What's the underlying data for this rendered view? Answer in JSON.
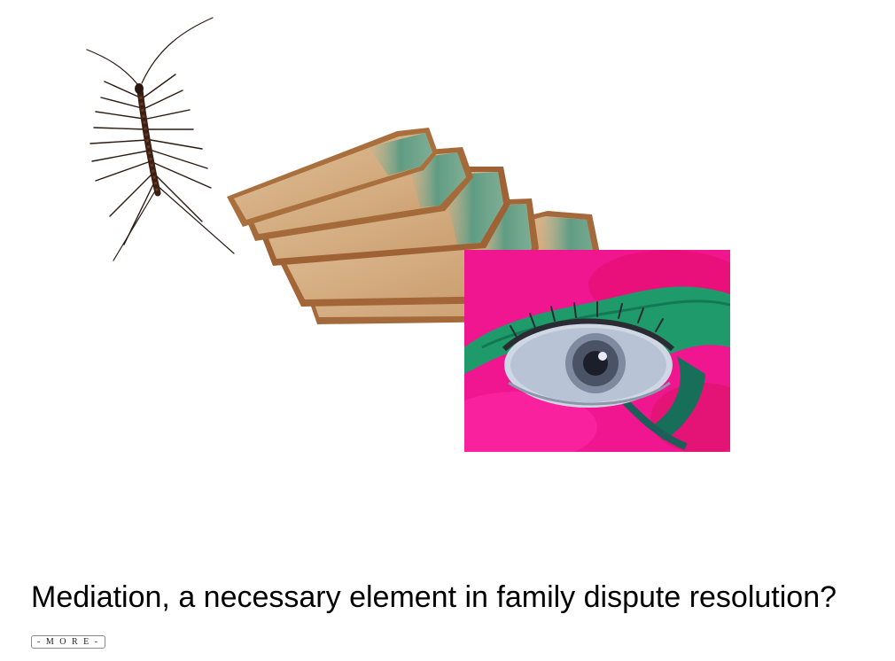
{
  "article": {
    "headline": "Mediation, a necessary element in family dispute resolution?",
    "more_label": "- M O R E -"
  },
  "artwork": {
    "centipede": "centipede-image",
    "bread": "moldy-bread-image",
    "eye": "eye-lizard-collage-image"
  },
  "colors": {
    "background": "#ffffff",
    "text": "#000000",
    "panel_magenta": "#f0168f",
    "lizard_green": "#1f9a6a",
    "mold_green": "#6fa58c",
    "bread_crust": "#a86a3c",
    "bread_crumb": "#d7b48c"
  }
}
